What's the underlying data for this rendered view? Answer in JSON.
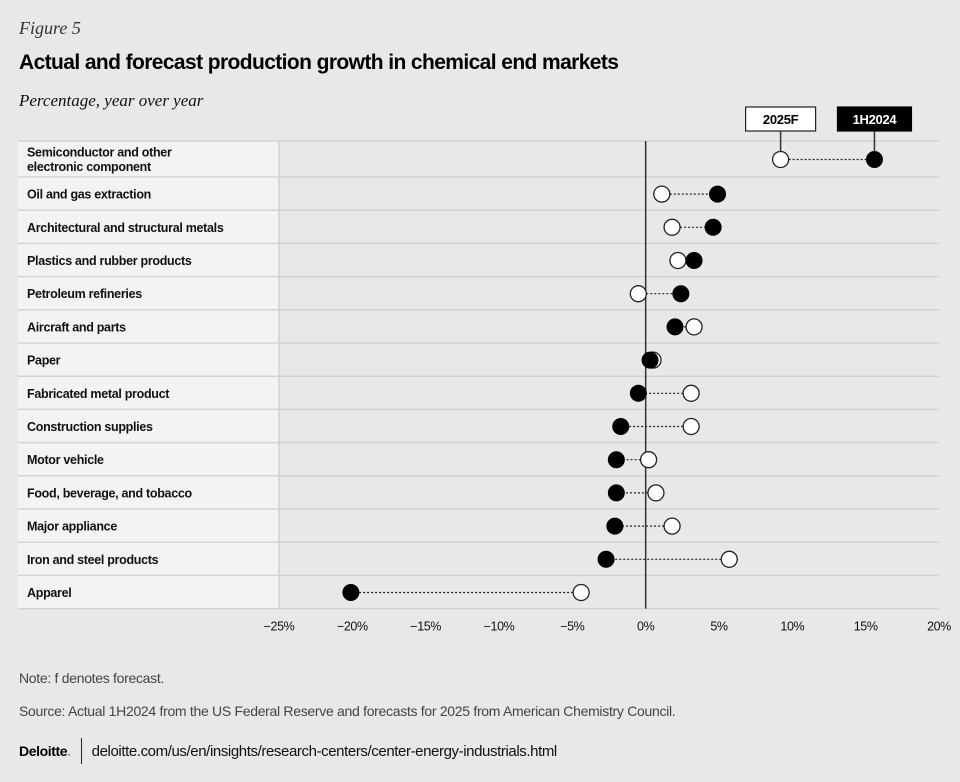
{
  "header": {
    "figure_label": "Figure 5",
    "title": "Actual and forecast production growth in chemical end markets",
    "subtitle": "Percentage, year over year"
  },
  "chart_data": {
    "type": "dumbbell",
    "title": "Actual and forecast production growth in chemical end markets",
    "xlabel": "",
    "ylabel": "Percentage, year over year",
    "xlim": [
      -25,
      20
    ],
    "x_ticks": [
      -25,
      -20,
      -15,
      -10,
      -5,
      0,
      5,
      10,
      15,
      20
    ],
    "x_tick_labels": [
      "−25%",
      "−20%",
      "−15%",
      "−10%",
      "−5%",
      "0%",
      "5%",
      "10%",
      "15%",
      "20%"
    ],
    "legend": {
      "placement": "top-right",
      "entries": [
        {
          "name": "2025F",
          "style": "open-circle"
        },
        {
          "name": "1H2024",
          "style": "filled-circle"
        }
      ]
    },
    "categories": [
      [
        "Semiconductor and other",
        "electronic component"
      ],
      [
        "Oil and gas extraction"
      ],
      [
        "Architectural and structural metals"
      ],
      [
        "Plastics and rubber products"
      ],
      [
        "Petroleum refineries"
      ],
      [
        "Aircraft and parts"
      ],
      [
        "Paper"
      ],
      [
        "Fabricated metal product"
      ],
      [
        "Construction supplies"
      ],
      [
        "Motor vehicle"
      ],
      [
        "Food, beverage, and tobacco"
      ],
      [
        "Major appliance"
      ],
      [
        "Iron and steel products"
      ],
      [
        "Apparel"
      ]
    ],
    "series": [
      {
        "name": "2025F",
        "color": "#ffffff",
        "stroke": "#222222",
        "values": [
          9.2,
          1.1,
          1.8,
          2.2,
          -0.5,
          3.3,
          0.5,
          3.1,
          3.1,
          0.2,
          0.7,
          1.8,
          5.7,
          -4.4
        ]
      },
      {
        "name": "1H2024",
        "color": "#000000",
        "stroke": "#000000",
        "values": [
          15.6,
          4.9,
          4.6,
          3.3,
          2.4,
          2.0,
          0.3,
          -0.5,
          -1.7,
          -2.0,
          -2.0,
          -2.1,
          -2.7,
          -20.1
        ]
      }
    ]
  },
  "notes": {
    "note": "Note: f denotes forecast.",
    "source": "Source: Actual 1H2024 from the US Federal Reserve and forecasts for 2025 from American Chemistry Council."
  },
  "footer": {
    "logo_text": "Deloitte",
    "logo_dot": ".",
    "url": "deloitte.com/us/en/insights/research-centers/center-energy-industrials.html"
  },
  "colors": {
    "background": "#e7e8e7",
    "label_column": "#f3f3f3",
    "gridline": "#d2d3d2",
    "zero_line": "#333333",
    "brand_green": "#86bc25"
  }
}
